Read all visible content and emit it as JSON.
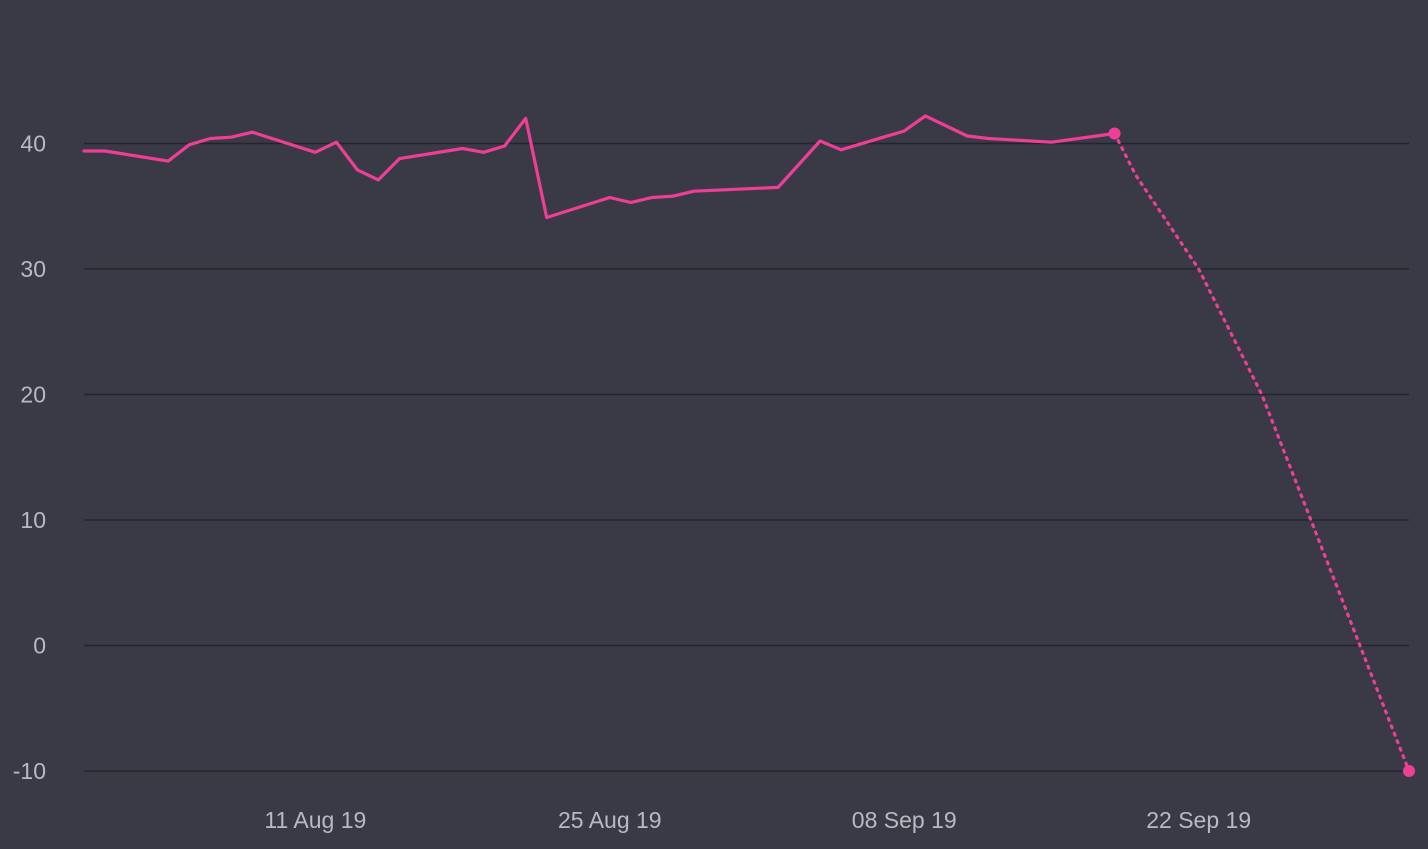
{
  "chart_data": {
    "type": "line",
    "title": "",
    "xlabel": "",
    "ylabel": "",
    "x_axis": {
      "type": "date",
      "range": [
        "2019-07-31",
        "2019-10-02"
      ],
      "ticks": [
        {
          "date": "2019-08-11",
          "label": "11 Aug 19"
        },
        {
          "date": "2019-08-25",
          "label": "25 Aug 19"
        },
        {
          "date": "2019-09-08",
          "label": "08 Sep 19"
        },
        {
          "date": "2019-09-22",
          "label": "22 Sep 19"
        }
      ]
    },
    "y_axis": {
      "range": [
        -10,
        50
      ],
      "ticks": [
        -10,
        0,
        10,
        20,
        30,
        40
      ],
      "grid": true
    },
    "legend": "none",
    "colors": {
      "background": "#3a3a46",
      "line": "#ee3f96",
      "grid": "#24242c",
      "text": "#b9b9c4"
    },
    "series": [
      {
        "style": "solid",
        "points": [
          {
            "x": "2019-07-31",
            "y": 39.4
          },
          {
            "x": "2019-08-01",
            "y": 39.4
          },
          {
            "x": "2019-08-04",
            "y": 38.6
          },
          {
            "x": "2019-08-05",
            "y": 39.9
          },
          {
            "x": "2019-08-06",
            "y": 40.4
          },
          {
            "x": "2019-08-07",
            "y": 40.5
          },
          {
            "x": "2019-08-08",
            "y": 40.9
          },
          {
            "x": "2019-08-11",
            "y": 39.3
          },
          {
            "x": "2019-08-12",
            "y": 40.1
          },
          {
            "x": "2019-08-13",
            "y": 37.9
          },
          {
            "x": "2019-08-14",
            "y": 37.1
          },
          {
            "x": "2019-08-15",
            "y": 38.8
          },
          {
            "x": "2019-08-18",
            "y": 39.6
          },
          {
            "x": "2019-08-19",
            "y": 39.3
          },
          {
            "x": "2019-08-20",
            "y": 39.8
          },
          {
            "x": "2019-08-21",
            "y": 42.0
          },
          {
            "x": "2019-08-22",
            "y": 34.1
          },
          {
            "x": "2019-08-25",
            "y": 35.7
          },
          {
            "x": "2019-08-26",
            "y": 35.3
          },
          {
            "x": "2019-08-27",
            "y": 35.7
          },
          {
            "x": "2019-08-28",
            "y": 35.8
          },
          {
            "x": "2019-08-29",
            "y": 36.2
          },
          {
            "x": "2019-09-02",
            "y": 36.5
          },
          {
            "x": "2019-09-04",
            "y": 40.2
          },
          {
            "x": "2019-09-05",
            "y": 39.5
          },
          {
            "x": "2019-09-08",
            "y": 41.0
          },
          {
            "x": "2019-09-09",
            "y": 42.2
          },
          {
            "x": "2019-09-11",
            "y": 40.6
          },
          {
            "x": "2019-09-12",
            "y": 40.4
          },
          {
            "x": "2019-09-15",
            "y": 40.1
          },
          {
            "x": "2019-09-18",
            "y": 40.8
          }
        ]
      },
      {
        "style": "dotted",
        "points": [
          {
            "x": "2019-09-18",
            "y": 40.8
          },
          {
            "x": "2019-09-19",
            "y": 37.5
          },
          {
            "x": "2019-09-22",
            "y": 30.0
          },
          {
            "x": "2019-09-25",
            "y": 20.0
          },
          {
            "x": "2019-10-02",
            "y": -10.0
          }
        ]
      }
    ]
  }
}
